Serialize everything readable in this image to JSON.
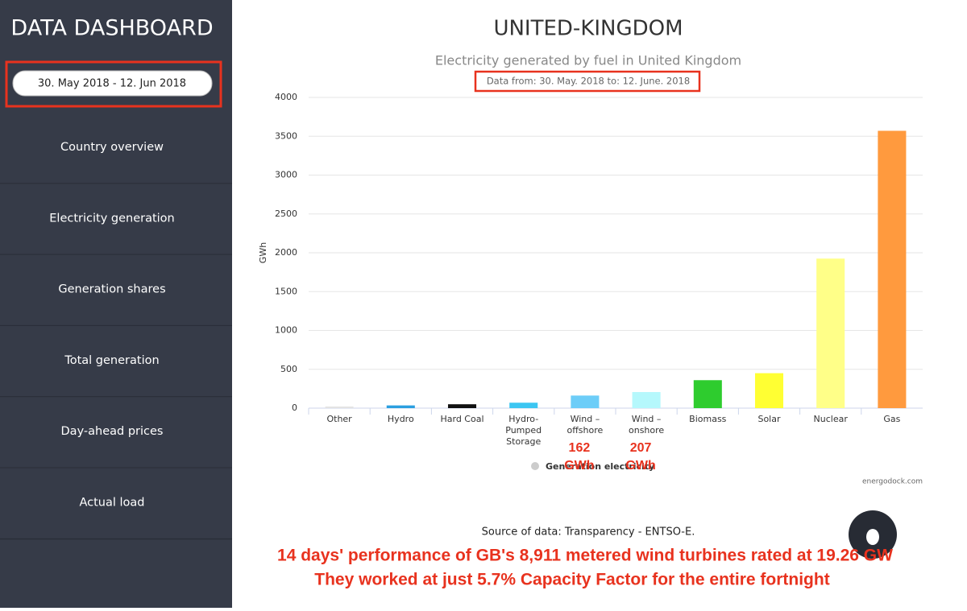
{
  "sidebar": {
    "title": "DATA DASHBOARD",
    "date_range": "30. May 2018 - 12. Jun 2018",
    "menu": [
      "Country overview",
      "Electricity generation",
      "Generation shares",
      "Total generation",
      "Day-ahead prices",
      "Actual load"
    ]
  },
  "chart_data": {
    "type": "bar",
    "title": "UNITED-KINGDOM",
    "subtitle": "Electricity generated by fuel in United Kingdom",
    "date_note": "Data from: 30. May. 2018 to: 12. June. 2018",
    "y_label": "GWh",
    "categories": [
      "Other",
      "Hydro",
      "Hard Coal",
      "Hydro-\nPumped\nStorage",
      "Wind –\noffshore",
      "Wind –\nonshore",
      "Biomass",
      "Solar",
      "Nuclear",
      "Gas"
    ],
    "series": [
      {
        "name": "Generation electricity",
        "colors": [
          "#e3e3e3",
          "#2b9fe0",
          "#111111",
          "#3cc6f2",
          "#6ccdf8",
          "#b5f8fc",
          "#2ecc2e",
          "#ffff33",
          "#ffff88",
          "#ff9a3e"
        ],
        "values": [
          20,
          35,
          50,
          70,
          162,
          207,
          360,
          450,
          1925,
          3570
        ],
        "value_labels": [
          null,
          null,
          null,
          null,
          "162 GWh",
          "207 GWh",
          null,
          null,
          null,
          null
        ]
      }
    ],
    "ylim": [
      0,
      4000
    ],
    "yticks": [
      0,
      500,
      1000,
      1500,
      2000,
      2500,
      3000,
      3500,
      4000
    ],
    "grid": true,
    "credit": "energodock.com"
  },
  "footer": {
    "source": "Source of data: Transparency - ENTSO-E.",
    "caption": [
      "14 days' performance of GB's 8,911 metered wind turbines rated at 19.26 GW",
      "They worked at just 5.7% Capacity Factor for the entire fortnight"
    ]
  }
}
